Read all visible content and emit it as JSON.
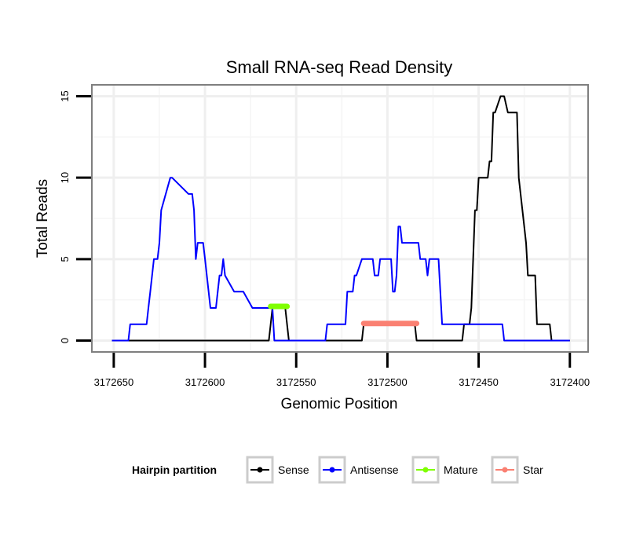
{
  "chart_data": {
    "type": "line",
    "title": "Small RNA-seq Read Density",
    "xlabel": "Genomic Position",
    "ylabel": "Total Reads",
    "xlim": [
      3172662,
      3172390
    ],
    "ylim": [
      -0.7,
      15.7
    ],
    "x_reversed": true,
    "xticks": [
      3172650,
      3172600,
      3172550,
      3172500,
      3172450,
      3172400
    ],
    "xtick_labels": [
      "3172650",
      "3172600",
      "3172550",
      "3172500",
      "3172450",
      "3172400"
    ],
    "yticks": [
      0,
      5,
      10,
      15
    ],
    "ytick_labels": [
      "0",
      "5",
      "10",
      "15"
    ],
    "grid": true,
    "legend": {
      "title": "Hairpin partition",
      "position": "bottom",
      "items": [
        {
          "name": "Sense",
          "color": "#000000"
        },
        {
          "name": "Antisense",
          "color": "#0000ff"
        },
        {
          "name": "Mature",
          "color": "#7fff00"
        },
        {
          "name": "Star",
          "color": "#fa8072"
        }
      ]
    },
    "series": [
      {
        "name": "Sense",
        "color": "#000000",
        "x": [
          3172651,
          3172565,
          3172564,
          3172563,
          3172556,
          3172555,
          3172554,
          3172514,
          3172513,
          3172512,
          3172485,
          3172484,
          3172483,
          3172459,
          3172458,
          3172457,
          3172455,
          3172454,
          3172453,
          3172452,
          3172451,
          3172450,
          3172448,
          3172447,
          3172445,
          3172444,
          3172443,
          3172442,
          3172441,
          3172438,
          3172437,
          3172436,
          3172434,
          3172433,
          3172432,
          3172429,
          3172428,
          3172424,
          3172423,
          3172422,
          3172421,
          3172420,
          3172419,
          3172418,
          3172412,
          3172411,
          3172410,
          3172409,
          3172406,
          3172405,
          3172400
        ],
        "y": [
          0,
          0,
          1,
          2,
          2,
          1,
          0,
          0,
          1,
          1,
          1,
          0,
          0,
          0,
          1,
          1,
          1,
          2,
          5,
          8,
          8,
          10,
          10,
          10,
          10,
          11,
          11,
          14,
          14,
          15,
          15,
          15,
          14,
          14,
          14,
          14,
          10,
          6,
          4,
          4,
          4,
          4,
          4,
          1,
          1,
          1,
          0,
          0,
          0,
          0,
          0
        ]
      },
      {
        "name": "Antisense",
        "color": "#0000ff",
        "x": [
          3172651,
          3172642,
          3172641,
          3172632,
          3172631,
          3172630,
          3172629,
          3172628,
          3172626,
          3172625,
          3172624,
          3172619,
          3172618,
          3172609,
          3172608,
          3172607,
          3172606,
          3172605,
          3172604,
          3172601,
          3172600,
          3172599,
          3172597,
          3172596,
          3172595,
          3172594,
          3172592,
          3172591,
          3172590,
          3172589,
          3172584,
          3172583,
          3172582,
          3172581,
          3172580,
          3172579,
          3172574,
          3172563,
          3172562,
          3172549,
          3172541,
          3172540,
          3172534,
          3172533,
          3172529,
          3172528,
          3172524,
          3172523,
          3172522,
          3172519,
          3172518,
          3172517,
          3172514,
          3172513,
          3172508,
          3172507,
          3172506,
          3172505,
          3172504,
          3172498,
          3172497,
          3172496,
          3172495,
          3172494,
          3172493,
          3172492,
          3172488,
          3172487,
          3172483,
          3172482,
          3172481,
          3172479,
          3172478,
          3172477,
          3172476,
          3172472,
          3172471,
          3172470,
          3172469,
          3172468,
          3172466,
          3172465,
          3172464,
          3172463,
          3172462,
          3172442,
          3172438,
          3172437,
          3172436,
          3172425,
          3172424,
          3172411,
          3172400
        ],
        "y": [
          0,
          0,
          1,
          1,
          2,
          3,
          4,
          5,
          5,
          6,
          8,
          10,
          10,
          9,
          9,
          9,
          8,
          5,
          6,
          6,
          5,
          4,
          2,
          2,
          2,
          2,
          4,
          4,
          5,
          4,
          3,
          3,
          3,
          3,
          3,
          3,
          2,
          2,
          0,
          0,
          0,
          0,
          0,
          1,
          1,
          1,
          1,
          1,
          3,
          3,
          4,
          4,
          5,
          5,
          5,
          4,
          4,
          4,
          5,
          5,
          3,
          3,
          4,
          7,
          7,
          6,
          6,
          6,
          6,
          5,
          5,
          5,
          4,
          5,
          5,
          5,
          3,
          1,
          1,
          1,
          1,
          1,
          1,
          1,
          1,
          1,
          1,
          1,
          0,
          0,
          0,
          0,
          0
        ]
      },
      {
        "name": "Mature",
        "color": "#7fff00",
        "x": [
          3172564,
          3172555
        ],
        "y": [
          2.1,
          2.1
        ]
      },
      {
        "name": "Star",
        "color": "#fa8072",
        "x": [
          3172513,
          3172484
        ],
        "y": [
          1.05,
          1.05
        ]
      }
    ]
  }
}
